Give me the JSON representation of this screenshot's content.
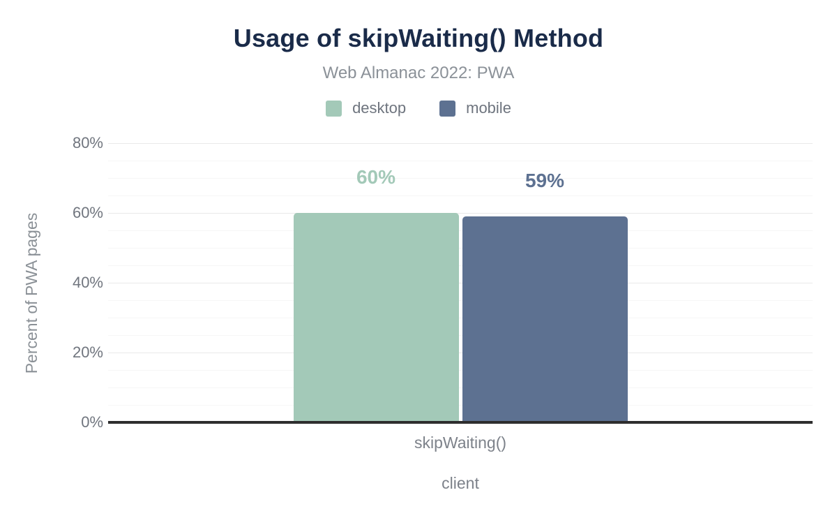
{
  "header": {
    "title": "Usage of skipWaiting() Method",
    "subtitle": "Web Almanac 2022: PWA"
  },
  "chart_data": {
    "type": "bar",
    "title": "Usage of skipWaiting() Method",
    "subtitle": "Web Almanac 2022: PWA",
    "categories": [
      "skipWaiting()"
    ],
    "series": [
      {
        "name": "desktop",
        "color": "#a3c9b8",
        "values": [
          60
        ],
        "value_labels": [
          "60%"
        ]
      },
      {
        "name": "mobile",
        "color": "#5d7191",
        "values": [
          59
        ],
        "value_labels": [
          "59%"
        ]
      }
    ],
    "xlabel": "client",
    "ylabel": "Percent of PWA pages",
    "ylim": [
      0,
      80
    ],
    "yticks": [
      0,
      20,
      40,
      60,
      80
    ],
    "ytick_labels": [
      "0%",
      "20%",
      "40%",
      "60%",
      "80%"
    ],
    "minor_grid_step": 5,
    "grid": "horizontal",
    "legend_position": "top"
  },
  "colors": {
    "background": "#ffffff",
    "title_text": "#1a2b49",
    "subtitle_text": "#8b9198",
    "legend_text": "#6e747e",
    "axis_tick_text": "#70757e",
    "axis_title_text": "#8a9096",
    "axis_line": "#2e2e2e",
    "grid_major": "#e9e9e9",
    "grid_minor": "#f6f6f6",
    "desktop_series": "#a3c9b8",
    "mobile_series": "#5d7191"
  }
}
